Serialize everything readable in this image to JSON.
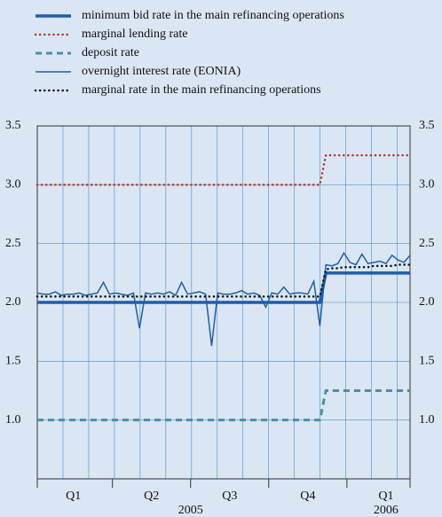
{
  "chart_data": {
    "type": "line",
    "categories": [
      null,
      null,
      null,
      null,
      null,
      null,
      "Q1",
      null,
      null,
      null,
      null,
      null,
      null,
      null,
      null,
      null,
      null,
      null,
      null,
      "Q2",
      null,
      null,
      null,
      null,
      null,
      null,
      null,
      null,
      null,
      null,
      null,
      null,
      "Q3",
      null,
      null,
      null,
      null,
      null,
      null,
      null,
      null,
      null,
      null,
      null,
      null,
      "Q4",
      null,
      null,
      null,
      null,
      null,
      null,
      null,
      null,
      null,
      null,
      null,
      null,
      "Q1",
      null,
      null,
      null,
      null
    ],
    "year_labels": [
      "2005",
      "2006"
    ],
    "ylim": [
      0.5,
      3.5
    ],
    "yticks": [
      {
        "value": 1.0,
        "label": "1.0"
      },
      {
        "value": 1.5,
        "label": "1.5"
      },
      {
        "value": 2.0,
        "label": "2.0"
      },
      {
        "value": 2.5,
        "label": "2.5"
      },
      {
        "value": 3.0,
        "label": "3.0"
      },
      {
        "value": 3.5,
        "label": "3.5"
      }
    ],
    "grid": true,
    "series": [
      {
        "name": "minimum bid rate in the main refinancing operations",
        "color": "#1f5ea8",
        "style": "thick",
        "values": [
          2,
          2,
          2,
          2,
          2,
          2,
          2,
          2,
          2,
          2,
          2,
          2,
          2,
          2,
          2,
          2,
          2,
          2,
          2,
          2,
          2,
          2,
          2,
          2,
          2,
          2,
          2,
          2,
          2,
          2,
          2,
          2,
          2,
          2,
          2,
          2,
          2,
          2,
          2,
          2,
          2,
          2,
          2,
          2,
          2,
          2,
          2,
          2,
          2.25,
          2.25,
          2.25,
          2.25,
          2.25,
          2.25,
          2.25,
          2.25,
          2.25,
          2.25,
          2.25,
          2.25,
          2.25,
          2.25,
          2.25
        ]
      },
      {
        "name": "marginal lending rate",
        "color": "#b23a2a",
        "style": "dotted",
        "values": [
          3,
          3,
          3,
          3,
          3,
          3,
          3,
          3,
          3,
          3,
          3,
          3,
          3,
          3,
          3,
          3,
          3,
          3,
          3,
          3,
          3,
          3,
          3,
          3,
          3,
          3,
          3,
          3,
          3,
          3,
          3,
          3,
          3,
          3,
          3,
          3,
          3,
          3,
          3,
          3,
          3,
          3,
          3,
          3,
          3,
          3,
          3,
          3,
          3.25,
          3.25,
          3.25,
          3.25,
          3.25,
          3.25,
          3.25,
          3.25,
          3.25,
          3.25,
          3.25,
          3.25,
          3.25,
          3.25,
          3.25
        ]
      },
      {
        "name": "deposit rate",
        "color": "#4a8fa6",
        "style": "dashed",
        "values": [
          1,
          1,
          1,
          1,
          1,
          1,
          1,
          1,
          1,
          1,
          1,
          1,
          1,
          1,
          1,
          1,
          1,
          1,
          1,
          1,
          1,
          1,
          1,
          1,
          1,
          1,
          1,
          1,
          1,
          1,
          1,
          1,
          1,
          1,
          1,
          1,
          1,
          1,
          1,
          1,
          1,
          1,
          1,
          1,
          1,
          1,
          1,
          1,
          1.25,
          1.25,
          1.25,
          1.25,
          1.25,
          1.25,
          1.25,
          1.25,
          1.25,
          1.25,
          1.25,
          1.25,
          1.25,
          1.25,
          1.25
        ]
      },
      {
        "name": "overnight interest rate (EONIA)",
        "color": "#1f5ea8",
        "style": "thin",
        "values": [
          2.08,
          2.07,
          2.07,
          2.09,
          2.06,
          2.07,
          2.07,
          2.08,
          2.06,
          2.07,
          2.08,
          2.17,
          2.07,
          2.08,
          2.07,
          2.06,
          2.08,
          1.78,
          2.08,
          2.07,
          2.08,
          2.07,
          2.09,
          2.06,
          2.17,
          2.07,
          2.08,
          2.09,
          2.07,
          1.63,
          2.08,
          2.07,
          2.07,
          2.08,
          2.1,
          2.07,
          2.08,
          2.06,
          1.96,
          2.08,
          2.07,
          2.13,
          2.07,
          2.08,
          2.08,
          2.07,
          2.18,
          1.8,
          2.32,
          2.31,
          2.33,
          2.42,
          2.34,
          2.32,
          2.41,
          2.33,
          2.34,
          2.35,
          2.33,
          2.4,
          2.36,
          2.34,
          2.4
        ]
      },
      {
        "name": "marginal rate in the main refinancing operations",
        "color": "#111111",
        "style": "dotted",
        "values": [
          2.05,
          2.05,
          2.05,
          2.05,
          2.05,
          2.05,
          2.05,
          2.05,
          2.05,
          2.05,
          2.05,
          2.05,
          2.05,
          2.05,
          2.05,
          2.05,
          2.05,
          2.05,
          2.05,
          2.05,
          2.05,
          2.05,
          2.05,
          2.05,
          2.05,
          2.05,
          2.05,
          2.05,
          2.05,
          2.05,
          2.05,
          2.05,
          2.05,
          2.05,
          2.05,
          2.05,
          2.05,
          2.05,
          2.05,
          2.05,
          2.05,
          2.05,
          2.05,
          2.05,
          2.05,
          2.05,
          2.05,
          2.05,
          2.28,
          2.29,
          2.29,
          2.3,
          2.3,
          2.3,
          2.3,
          2.3,
          2.31,
          2.31,
          2.31,
          2.31,
          2.32,
          2.32,
          2.32
        ]
      }
    ]
  }
}
